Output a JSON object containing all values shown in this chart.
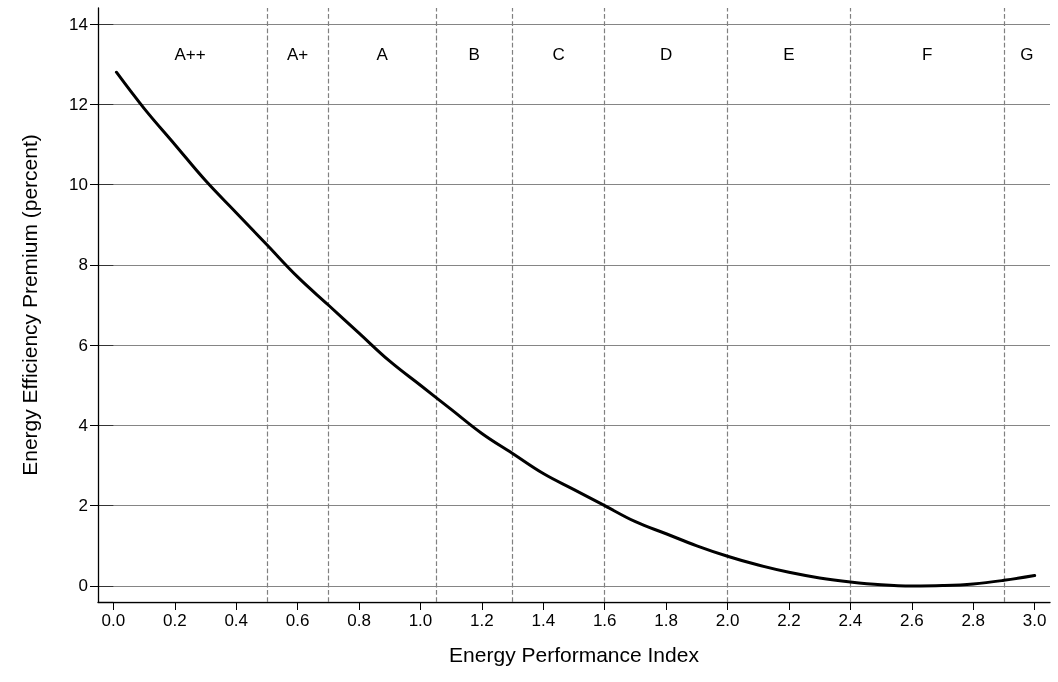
{
  "chart_data": {
    "type": "line",
    "xlabel": "Energy Performance Index",
    "ylabel": "Energy Efficiency Premium (percent)",
    "x": [
      0.01,
      0.1,
      0.2,
      0.3,
      0.4,
      0.5,
      0.6,
      0.7,
      0.8,
      0.9,
      1.0,
      1.1,
      1.2,
      1.3,
      1.4,
      1.5,
      1.6,
      1.7,
      1.8,
      1.9,
      2.0,
      2.1,
      2.2,
      2.3,
      2.4,
      2.5,
      2.6,
      2.7,
      2.8,
      2.9,
      3.0
    ],
    "series": [
      {
        "color": "#000000",
        "values": [
          12.8,
          11.9,
          11.0,
          10.1,
          9.3,
          8.5,
          7.7,
          7.0,
          6.3,
          5.6,
          5.0,
          4.4,
          3.8,
          3.3,
          2.8,
          2.4,
          2.0,
          1.6,
          1.3,
          1.0,
          0.74,
          0.52,
          0.34,
          0.2,
          0.1,
          0.03,
          0.0,
          0.01,
          0.05,
          0.14,
          0.26
        ]
      }
    ],
    "xlim": [
      -0.05,
      3.05
    ],
    "ylim": [
      -0.4,
      14.4
    ],
    "xticks": [
      {
        "value": 0,
        "label": "0.0"
      },
      0.2,
      0.4,
      0.6,
      0.8,
      {
        "value": 1,
        "label": "1.0"
      },
      1.2,
      1.4,
      1.6,
      1.8,
      {
        "value": 2,
        "label": "2.0"
      },
      2.2,
      2.4,
      2.6,
      2.8,
      {
        "value": 3,
        "label": "3.0"
      }
    ],
    "yticks": [
      0,
      2,
      4,
      6,
      8,
      10,
      12,
      14
    ],
    "grid": "y",
    "marker": "none",
    "line_style": "solid",
    "ref_lines": [
      {
        "axis": "x",
        "value": 0.5,
        "color": "#808080",
        "line_style": "dashed"
      },
      {
        "axis": "x",
        "value": 0.7,
        "color": "#808080",
        "line_style": "dashed"
      },
      {
        "axis": "x",
        "value": 1.05,
        "color": "#808080",
        "line_style": "dashed"
      },
      {
        "axis": "x",
        "value": 1.3,
        "color": "#808080",
        "line_style": "dashed"
      },
      {
        "axis": "x",
        "value": 1.6,
        "color": "#808080",
        "line_style": "dashed"
      },
      {
        "axis": "x",
        "value": 2.0,
        "color": "#808080",
        "line_style": "dashed"
      },
      {
        "axis": "x",
        "value": 2.4,
        "color": "#808080",
        "line_style": "dashed"
      },
      {
        "axis": "x",
        "value": 2.9,
        "color": "#808080",
        "line_style": "dashed"
      }
    ],
    "bands": [
      {
        "axis": "x",
        "from": 0.0,
        "to": 0.5,
        "label": "A++",
        "color": "#ffffff"
      },
      {
        "axis": "x",
        "from": 0.5,
        "to": 0.7,
        "label": "A+",
        "color": "#ffffff"
      },
      {
        "axis": "x",
        "from": 0.7,
        "to": 1.05,
        "label": "A",
        "color": "#ffffff"
      },
      {
        "axis": "x",
        "from": 1.05,
        "to": 1.3,
        "label": "B",
        "color": "#ffffff"
      },
      {
        "axis": "x",
        "from": 1.3,
        "to": 1.6,
        "label": "C",
        "color": "#ffffff"
      },
      {
        "axis": "x",
        "from": 1.6,
        "to": 2.0,
        "label": "D",
        "color": "#ffffff"
      },
      {
        "axis": "x",
        "from": 2.0,
        "to": 2.4,
        "label": "E",
        "color": "#ffffff"
      },
      {
        "axis": "x",
        "from": 2.4,
        "to": 2.9,
        "label": "F",
        "color": "#ffffff"
      },
      {
        "axis": "x",
        "from": 2.9,
        "to": 3.05,
        "label": "G",
        "color": "#ffffff"
      }
    ]
  }
}
